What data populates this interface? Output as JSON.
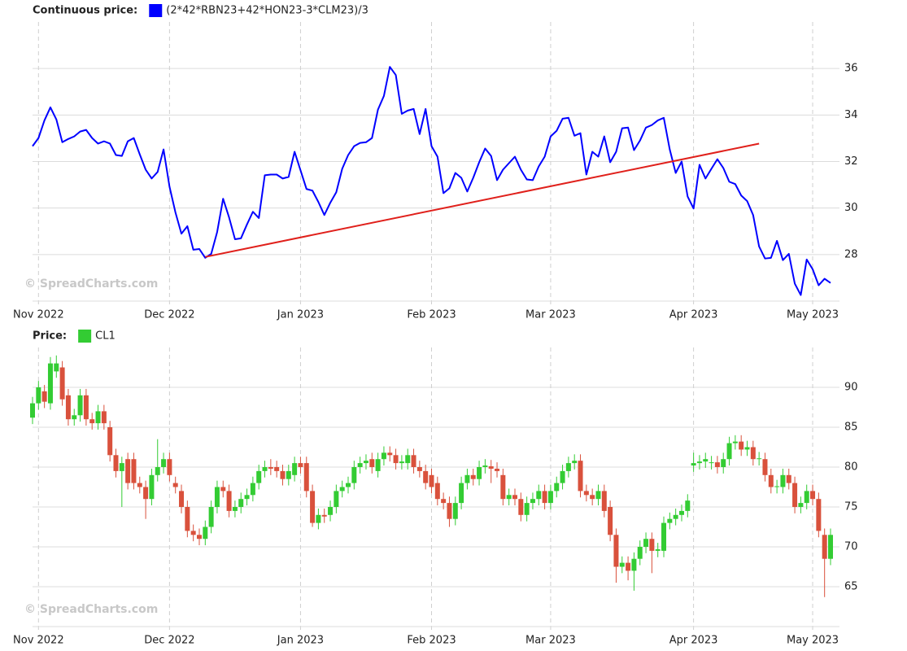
{
  "chart_data": [
    {
      "type": "line",
      "legend_title": "Continuous price:",
      "watermark": "© SpreadCharts.com",
      "categories": [
        null,
        "Nov 2022",
        null,
        null,
        null,
        null,
        null,
        null,
        null,
        null,
        null,
        null,
        null,
        null,
        null,
        null,
        null,
        null,
        null,
        null,
        null,
        null,
        null,
        "Dec 2022",
        null,
        null,
        null,
        null,
        null,
        null,
        null,
        null,
        null,
        null,
        null,
        null,
        null,
        null,
        null,
        null,
        null,
        null,
        null,
        null,
        null,
        "Jan 2023",
        null,
        null,
        null,
        null,
        null,
        null,
        null,
        null,
        null,
        null,
        null,
        null,
        null,
        null,
        null,
        null,
        null,
        null,
        null,
        null,
        null,
        "Feb 2023",
        null,
        null,
        null,
        null,
        null,
        null,
        null,
        null,
        null,
        null,
        null,
        null,
        null,
        null,
        null,
        null,
        null,
        null,
        null,
        "Mar 2023",
        null,
        null,
        null,
        null,
        null,
        null,
        null,
        null,
        null,
        null,
        null,
        null,
        null,
        null,
        null,
        null,
        null,
        null,
        null,
        null,
        null,
        null,
        null,
        "Apr 2023",
        null,
        null,
        null,
        null,
        null,
        null,
        null,
        null,
        null,
        null,
        null,
        null,
        null,
        null,
        null,
        null,
        null,
        null,
        null,
        "May 2023",
        null,
        null,
        null
      ],
      "series": [
        {
          "name": "(2*42*RBN23+42*HON23-3*CLM23)/3",
          "color": "#0000ff",
          "values": [
            32.66,
            33.01,
            33.77,
            34.33,
            33.81,
            32.83,
            32.97,
            33.08,
            33.29,
            33.36,
            33.01,
            32.77,
            32.87,
            32.77,
            32.28,
            32.24,
            32.87,
            33.01,
            32.31,
            31.65,
            31.27,
            31.55,
            32.52,
            30.92,
            29.81,
            28.9,
            29.22,
            28.21,
            28.24,
            27.86,
            28.03,
            28.97,
            30.4,
            29.6,
            28.66,
            28.7,
            29.29,
            29.84,
            29.57,
            31.41,
            31.44,
            31.44,
            31.27,
            31.34,
            32.42,
            31.62,
            30.82,
            30.75,
            30.26,
            29.7,
            30.23,
            30.68,
            31.69,
            32.28,
            32.66,
            32.8,
            32.83,
            33.01,
            34.23,
            34.82,
            36.07,
            35.72,
            34.05,
            34.19,
            34.26,
            33.18,
            34.26,
            32.66,
            32.21,
            30.64,
            30.85,
            31.51,
            31.3,
            30.71,
            31.3,
            31.97,
            32.56,
            32.24,
            31.2,
            31.65,
            31.93,
            32.21,
            31.65,
            31.23,
            31.2,
            31.79,
            32.21,
            33.08,
            33.32,
            33.84,
            33.88,
            33.11,
            33.22,
            31.44,
            32.42,
            32.21,
            33.08,
            31.97,
            32.42,
            33.43,
            33.46,
            32.49,
            32.9,
            33.46,
            33.57,
            33.77,
            33.88,
            32.52,
            31.51,
            32.0,
            30.5,
            29.98,
            31.86,
            31.27,
            31.69,
            32.1,
            31.72,
            31.13,
            31.03,
            30.54,
            30.3,
            29.7,
            28.35,
            27.83,
            27.86,
            28.59,
            27.76,
            28.03,
            26.75,
            26.26,
            27.79,
            27.37,
            26.68,
            26.96,
            26.78
          ]
        }
      ],
      "trendline": {
        "color": "#e0201b",
        "x": [
          29,
          122
        ],
        "values": [
          27.9,
          32.77
        ]
      },
      "ylim": [
        26,
        38
      ],
      "yticks": [
        28,
        30,
        32,
        34,
        36
      ],
      "grid": true
    },
    {
      "type": "candlestick",
      "legend_title": "Price:",
      "watermark": "© SpreadCharts.com",
      "categories": [
        null,
        "Nov 2022",
        null,
        null,
        null,
        null,
        null,
        null,
        null,
        null,
        null,
        null,
        null,
        null,
        null,
        null,
        null,
        null,
        null,
        null,
        null,
        null,
        null,
        "Dec 2022",
        null,
        null,
        null,
        null,
        null,
        null,
        null,
        null,
        null,
        null,
        null,
        null,
        null,
        null,
        null,
        null,
        null,
        null,
        null,
        null,
        null,
        "Jan 2023",
        null,
        null,
        null,
        null,
        null,
        null,
        null,
        null,
        null,
        null,
        null,
        null,
        null,
        null,
        null,
        null,
        null,
        null,
        null,
        null,
        null,
        "Feb 2023",
        null,
        null,
        null,
        null,
        null,
        null,
        null,
        null,
        null,
        null,
        null,
        null,
        null,
        null,
        null,
        null,
        null,
        null,
        null,
        "Mar 2023",
        null,
        null,
        null,
        null,
        null,
        null,
        null,
        null,
        null,
        null,
        null,
        null,
        null,
        null,
        null,
        null,
        null,
        null,
        null,
        null,
        null,
        null,
        null,
        "Apr 2023",
        null,
        null,
        null,
        null,
        null,
        null,
        null,
        null,
        null,
        null,
        null,
        null,
        null,
        null,
        null,
        null,
        null,
        null,
        null,
        "May 2023",
        null,
        null,
        null
      ],
      "up_color": "#33cc33",
      "down_color": "#d9513c",
      "series": [
        {
          "name": "CL1",
          "color": "#33cc33",
          "open": [
            86.2,
            88,
            89.5,
            88,
            92,
            92.5,
            89,
            86,
            86.5,
            89,
            86,
            85.5,
            87,
            85,
            81.5,
            79.5,
            81,
            81,
            78,
            77.5,
            76,
            79,
            80,
            81,
            78,
            77,
            75,
            72,
            71.5,
            71,
            72.5,
            75,
            77.5,
            77,
            74.5,
            75,
            76,
            76.5,
            78,
            79.5,
            80,
            80,
            79.5,
            78.5,
            79,
            80.5,
            80.5,
            77,
            73,
            74,
            74,
            75,
            77,
            77.5,
            78,
            80,
            80.5,
            81,
            79.5,
            81,
            81.8,
            81.5,
            80.5,
            80.5,
            81.5,
            80,
            79.5,
            79,
            78,
            76,
            75.5,
            73.5,
            75.5,
            78,
            79,
            78.5,
            80,
            80.1,
            79.8,
            79,
            76,
            76.5,
            76,
            74,
            75.5,
            76,
            77,
            75.5,
            77,
            78,
            79.5,
            80.5,
            80.8,
            77,
            76.5,
            76,
            77,
            75,
            71.5,
            67.5,
            68,
            67,
            68.5,
            70,
            71,
            69.5,
            69.5,
            73,
            73.5,
            74,
            74.5,
            80.2,
            80.5,
            80.7,
            80.5,
            80.6,
            80,
            81,
            83,
            83.2,
            82.2,
            82.5,
            81,
            81,
            79,
            77.5,
            77.5,
            79,
            78,
            75,
            75.5,
            77,
            76,
            71.5,
            68.5
          ],
          "high": [
            88.8,
            90.8,
            90.3,
            93.8,
            94,
            93.3,
            89.8,
            87.3,
            89.8,
            89.8,
            86.8,
            87.8,
            87.8,
            85.8,
            82.3,
            81.3,
            81.8,
            81.8,
            78.8,
            78.3,
            79.8,
            83.5,
            81.8,
            81.8,
            78.8,
            77.8,
            75.8,
            72.8,
            72.3,
            73.3,
            75.8,
            78.3,
            78.3,
            77.8,
            75.8,
            76.8,
            77.3,
            78.8,
            80.3,
            80.8,
            81,
            80.8,
            80.3,
            80.3,
            81.3,
            81.3,
            81.3,
            77.8,
            74.8,
            74.8,
            75.8,
            77.8,
            78.3,
            78.8,
            80.8,
            81.3,
            81.6,
            81.8,
            81.8,
            82.6,
            82.6,
            82.3,
            81.5,
            82.3,
            82.3,
            80.8,
            80.3,
            79.8,
            78.8,
            76.8,
            76.3,
            76.3,
            78.8,
            79.8,
            79.8,
            80.8,
            81,
            80.9,
            80.6,
            79.8,
            77.3,
            77.3,
            76.8,
            76.3,
            76.8,
            77.8,
            77.8,
            77.8,
            78.8,
            80.3,
            81.3,
            81.6,
            81.6,
            77.8,
            77.3,
            77.8,
            77.8,
            75.8,
            72.3,
            68.8,
            68.8,
            69.3,
            70.8,
            71.8,
            71.8,
            70.5,
            73.8,
            74.3,
            74.8,
            75.3,
            76.6,
            81.8,
            81.5,
            81.8,
            81.4,
            81.4,
            81.8,
            83.8,
            84,
            84,
            83.3,
            83.3,
            81.9,
            81.8,
            79.8,
            78.4,
            79.8,
            79.8,
            78.8,
            76.3,
            77.8,
            77.8,
            76.8,
            72.3,
            72.3
          ],
          "low": [
            85.4,
            87.2,
            87.4,
            87.2,
            91.2,
            87.7,
            85.2,
            85.2,
            85.7,
            85.2,
            84.7,
            84.7,
            84.7,
            80.7,
            78.7,
            75,
            77.2,
            77.2,
            76.7,
            73.5,
            75.2,
            78.2,
            79.2,
            78.2,
            76.7,
            74.2,
            71.2,
            70.7,
            70.2,
            70.2,
            71.7,
            74.2,
            76.2,
            73.7,
            73.7,
            74.2,
            75.2,
            75.7,
            77.2,
            78.7,
            79,
            78.7,
            77.7,
            77.7,
            78.2,
            79.2,
            76.2,
            72.5,
            72.2,
            73,
            73.2,
            74.2,
            76.2,
            76.7,
            77.2,
            79.2,
            79.7,
            79.2,
            78.7,
            80.2,
            80.7,
            79.7,
            79.7,
            79.7,
            79.2,
            78.7,
            77.2,
            76.7,
            75.2,
            74.7,
            72.5,
            72.7,
            74.7,
            77.2,
            77.7,
            77.7,
            79.2,
            78,
            78.7,
            75.2,
            75.2,
            75.2,
            73.2,
            73.2,
            74.7,
            75.2,
            74.7,
            74.7,
            76.2,
            77.2,
            78.7,
            79.7,
            76.2,
            75.7,
            75.2,
            75.2,
            73.7,
            70.7,
            65.5,
            66.7,
            65.8,
            64.5,
            67.7,
            69.2,
            66.7,
            68.7,
            68.7,
            72.2,
            72.7,
            73.2,
            73.7,
            79.4,
            79.7,
            79.9,
            79.7,
            79.2,
            79.2,
            80.2,
            82.2,
            81.4,
            81.4,
            80.2,
            80.2,
            78.2,
            76.7,
            76.7,
            76.7,
            77.2,
            74.2,
            74.2,
            74.7,
            75.2,
            71.2,
            63.7,
            67.7
          ],
          "close": [
            88,
            90,
            88.2,
            93,
            93,
            88.5,
            86,
            86.5,
            89,
            86,
            85.5,
            87,
            85.5,
            81.5,
            79.5,
            80.5,
            78,
            78,
            77.5,
            76,
            79,
            80,
            81,
            79,
            77.5,
            75,
            72,
            71.5,
            71,
            72.5,
            75,
            77.5,
            77,
            74.5,
            75,
            76,
            76.5,
            78,
            79.5,
            80,
            79.8,
            79.5,
            78.5,
            79.5,
            80.5,
            80,
            77,
            73,
            74,
            73.8,
            75,
            77,
            77.5,
            78,
            80,
            80.5,
            80.8,
            80,
            81,
            81.8,
            81.5,
            80.5,
            80.7,
            81.5,
            80,
            79.5,
            78,
            77.5,
            76,
            75.5,
            73.5,
            75.5,
            78,
            79,
            78.5,
            80,
            80.2,
            79.8,
            79.5,
            76,
            76.5,
            76,
            74,
            75.5,
            76,
            77,
            75.5,
            77,
            78,
            79.5,
            80.5,
            80.8,
            77,
            76.5,
            76,
            77,
            74.5,
            71.5,
            67.5,
            68,
            67,
            68.5,
            70,
            71,
            69.5,
            69.7,
            73,
            73.5,
            74,
            74.5,
            75.8,
            80.5,
            80.7,
            81,
            80.6,
            80,
            81,
            83,
            83.2,
            82.2,
            82.5,
            81,
            81.1,
            79,
            77.5,
            77.6,
            79,
            78,
            75,
            75.5,
            77,
            76,
            72,
            68.5,
            71.5
          ]
        }
      ],
      "ylim": [
        60,
        95
      ],
      "yticks": [
        65,
        70,
        75,
        80,
        85,
        90
      ],
      "grid": true
    }
  ]
}
